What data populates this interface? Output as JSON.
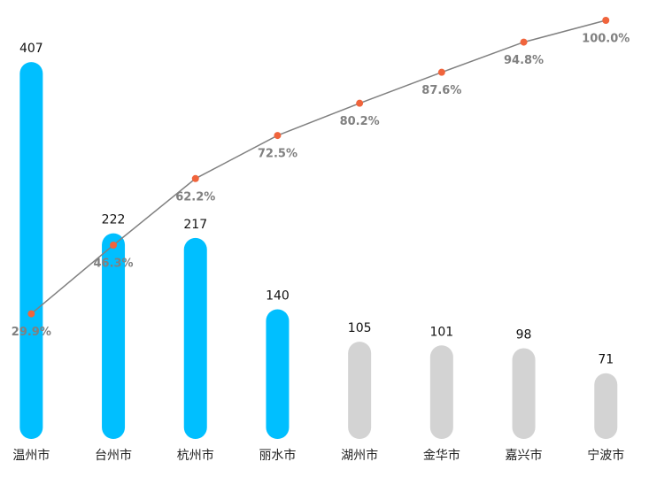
{
  "chart_data": {
    "type": "pareto",
    "categories": [
      "温州市",
      "台州市",
      "杭州市",
      "丽水市",
      "湖州市",
      "金华市",
      "嘉兴市",
      "宁波市"
    ],
    "series": [
      {
        "type": "bar",
        "values": [
          407,
          222,
          217,
          140,
          105,
          101,
          98,
          71
        ],
        "colors": [
          "#00bfff",
          "#00bfff",
          "#00bfff",
          "#00bfff",
          "#d3d3d3",
          "#d3d3d3",
          "#d3d3d3",
          "#d3d3d3"
        ]
      },
      {
        "type": "line",
        "axis": "y2",
        "color": "#808080",
        "marker_color": "#f0643c",
        "values": [
          29.9,
          46.3,
          62.2,
          72.5,
          80.2,
          87.6,
          94.8,
          100.0
        ],
        "value_labels": [
          "29.9%",
          "46.3%",
          "62.2%",
          "72.5%",
          "80.2%",
          "87.6%",
          "94.8%",
          "100.0%"
        ]
      }
    ],
    "ylim": [
      0,
      452
    ],
    "y2lim": [
      0,
      100
    ]
  }
}
